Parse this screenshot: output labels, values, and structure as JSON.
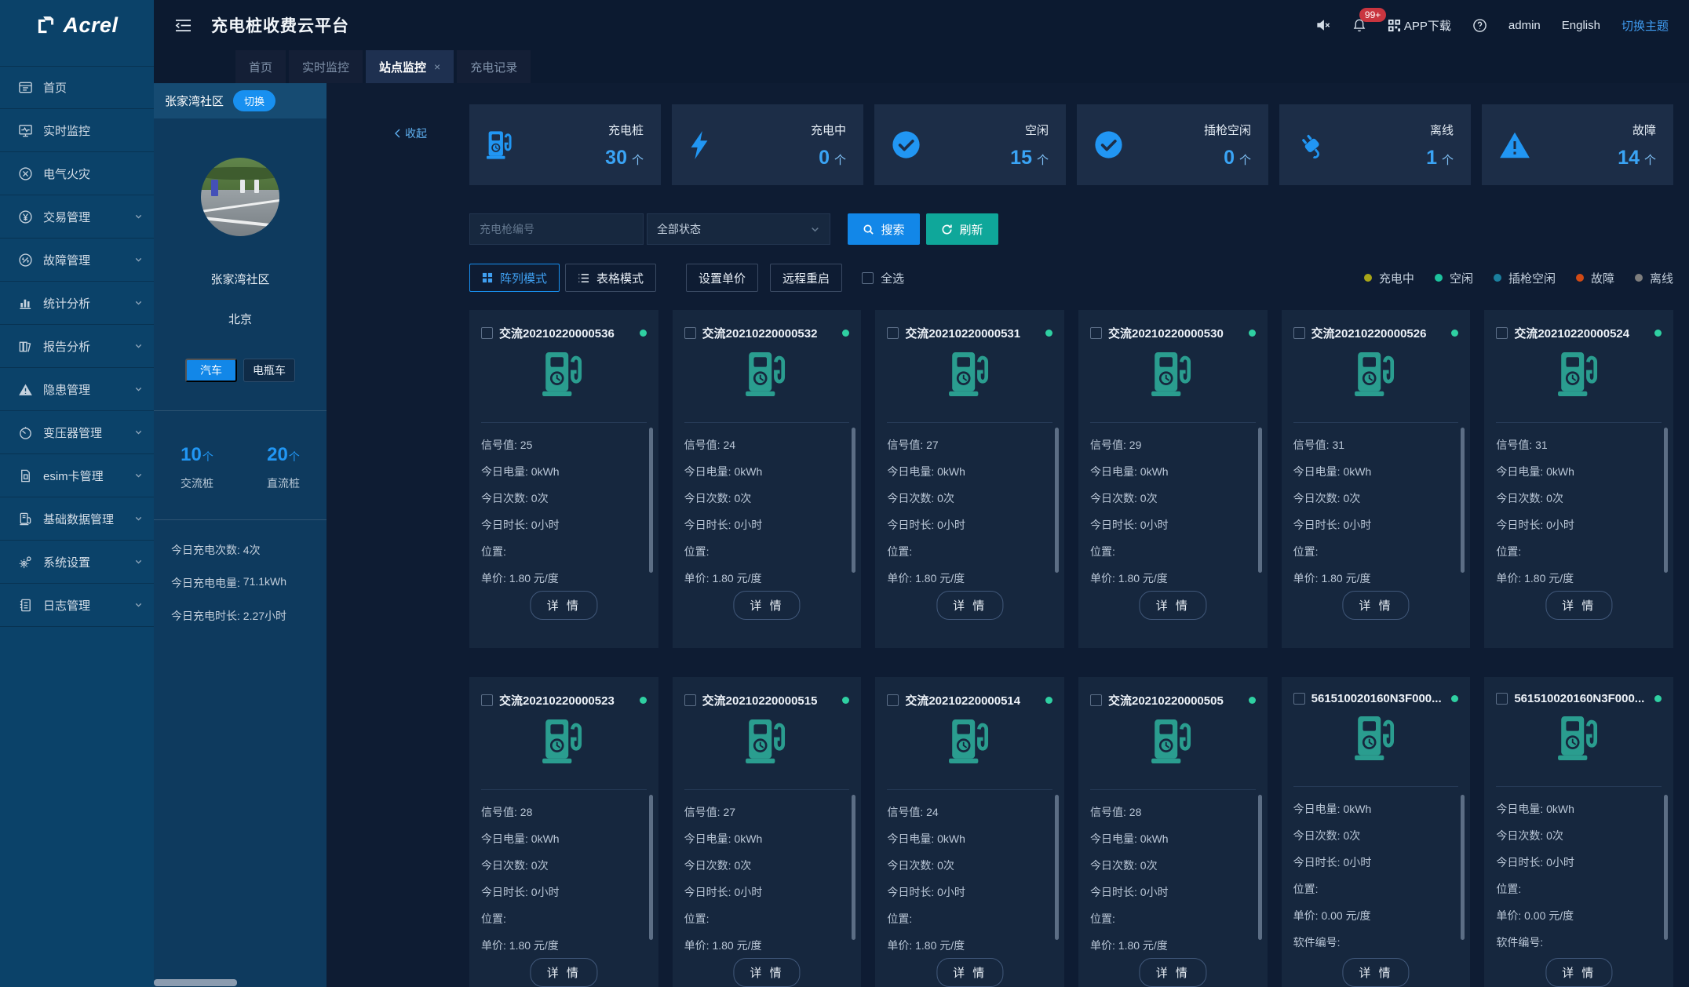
{
  "brand": {
    "name": "Acrel"
  },
  "header": {
    "title": "充电桩收费云平台",
    "notification_count": "99+",
    "app_download_label": "APP下载",
    "username": "admin",
    "language_label": "English",
    "theme_switch_label": "切换主题"
  },
  "tabs": [
    {
      "label": "首页",
      "active": false,
      "closable": false
    },
    {
      "label": "实时监控",
      "active": false,
      "closable": false
    },
    {
      "label": "站点监控",
      "active": true,
      "closable": true
    },
    {
      "label": "充电记录",
      "active": false,
      "closable": false
    }
  ],
  "sidebar": {
    "items": [
      {
        "label": "首页",
        "icon": "home-icon",
        "expandable": false
      },
      {
        "label": "实时监控",
        "icon": "monitor-icon",
        "expandable": false
      },
      {
        "label": "电气火灾",
        "icon": "electrical-fire-icon",
        "expandable": false
      },
      {
        "label": "交易管理",
        "icon": "transaction-icon",
        "expandable": true
      },
      {
        "label": "故障管理",
        "icon": "fault-icon",
        "expandable": true
      },
      {
        "label": "统计分析",
        "icon": "statistics-icon",
        "expandable": true
      },
      {
        "label": "报告分析",
        "icon": "report-icon",
        "expandable": true
      },
      {
        "label": "隐患管理",
        "icon": "hazard-icon",
        "expandable": true
      },
      {
        "label": "变压器管理",
        "icon": "transformer-icon",
        "expandable": true
      },
      {
        "label": "esim卡管理",
        "icon": "sim-card-icon",
        "expandable": true
      },
      {
        "label": "基础数据管理",
        "icon": "base-data-icon",
        "expandable": true
      },
      {
        "label": "系统设置",
        "icon": "settings-icon",
        "expandable": true
      },
      {
        "label": "日志管理",
        "icon": "log-icon",
        "expandable": true
      }
    ]
  },
  "station_panel": {
    "collapse_label": "收起",
    "name": "张家湾社区",
    "switch_label": "切换",
    "photo_caption": "张家湾社区",
    "city": "北京",
    "vehicle_tabs": [
      {
        "label": "汽车",
        "active": true
      },
      {
        "label": "电瓶车",
        "active": false
      }
    ],
    "pile_stats": [
      {
        "value": "10",
        "unit": "个",
        "label": "交流桩"
      },
      {
        "value": "20",
        "unit": "个",
        "label": "直流桩"
      }
    ],
    "today_stats": [
      {
        "label": "今日充电次数",
        "value": "4次"
      },
      {
        "label": "今日充电电量",
        "value": "71.1kWh"
      },
      {
        "label": "今日充电时长",
        "value": "2.27小时"
      }
    ]
  },
  "status_cards": [
    {
      "label": "充电桩",
      "value": "30",
      "unit": "个",
      "icon": "charging-pile-icon"
    },
    {
      "label": "充电中",
      "value": "0",
      "unit": "个",
      "icon": "bolt-icon"
    },
    {
      "label": "空闲",
      "value": "15",
      "unit": "个",
      "icon": "check-circle-icon"
    },
    {
      "label": "插枪空闲",
      "value": "0",
      "unit": "个",
      "icon": "check-circle-icon"
    },
    {
      "label": "离线",
      "value": "1",
      "unit": "个",
      "icon": "plug-icon"
    },
    {
      "label": "故障",
      "value": "14",
      "unit": "个",
      "icon": "warning-icon"
    }
  ],
  "toolbar": {
    "search_placeholder": "充电枪编号",
    "status_filter_value": "全部状态",
    "search_label": "搜索",
    "refresh_label": "刷新",
    "array_mode_label": "阵列模式",
    "table_mode_label": "表格模式",
    "set_price_label": "设置单价",
    "remote_restart_label": "远程重启",
    "select_all_label": "全选"
  },
  "legend": [
    {
      "label": "充电中",
      "color": "#a8a518"
    },
    {
      "label": "空闲",
      "color": "#1dc29e"
    },
    {
      "label": "插枪空闲",
      "color": "#1b7f9e"
    },
    {
      "label": "故障",
      "color": "#d14a15"
    },
    {
      "label": "离线",
      "color": "#7d7d7d"
    }
  ],
  "cards_common": {
    "detail_label": "详 情",
    "status_dot_color": "#2fd0a2"
  },
  "pile_cards": [
    {
      "title": "交流20210220000536",
      "fields": [
        {
          "label": "信号值",
          "value": "25"
        },
        {
          "label": "今日电量",
          "value": "0kWh"
        },
        {
          "label": "今日次数",
          "value": "0次"
        },
        {
          "label": "今日时长",
          "value": "0小时"
        },
        {
          "label": "位置",
          "value": ""
        },
        {
          "label": "单价",
          "value": "1.80 元/度"
        }
      ]
    },
    {
      "title": "交流20210220000532",
      "fields": [
        {
          "label": "信号值",
          "value": "24"
        },
        {
          "label": "今日电量",
          "value": "0kWh"
        },
        {
          "label": "今日次数",
          "value": "0次"
        },
        {
          "label": "今日时长",
          "value": "0小时"
        },
        {
          "label": "位置",
          "value": ""
        },
        {
          "label": "单价",
          "value": "1.80 元/度"
        }
      ]
    },
    {
      "title": "交流20210220000531",
      "fields": [
        {
          "label": "信号值",
          "value": "27"
        },
        {
          "label": "今日电量",
          "value": "0kWh"
        },
        {
          "label": "今日次数",
          "value": "0次"
        },
        {
          "label": "今日时长",
          "value": "0小时"
        },
        {
          "label": "位置",
          "value": ""
        },
        {
          "label": "单价",
          "value": "1.80 元/度"
        }
      ]
    },
    {
      "title": "交流20210220000530",
      "fields": [
        {
          "label": "信号值",
          "value": "29"
        },
        {
          "label": "今日电量",
          "value": "0kWh"
        },
        {
          "label": "今日次数",
          "value": "0次"
        },
        {
          "label": "今日时长",
          "value": "0小时"
        },
        {
          "label": "位置",
          "value": ""
        },
        {
          "label": "单价",
          "value": "1.80 元/度"
        }
      ]
    },
    {
      "title": "交流20210220000526",
      "fields": [
        {
          "label": "信号值",
          "value": "31"
        },
        {
          "label": "今日电量",
          "value": "0kWh"
        },
        {
          "label": "今日次数",
          "value": "0次"
        },
        {
          "label": "今日时长",
          "value": "0小时"
        },
        {
          "label": "位置",
          "value": ""
        },
        {
          "label": "单价",
          "value": "1.80 元/度"
        }
      ]
    },
    {
      "title": "交流20210220000524",
      "fields": [
        {
          "label": "信号值",
          "value": "31"
        },
        {
          "label": "今日电量",
          "value": "0kWh"
        },
        {
          "label": "今日次数",
          "value": "0次"
        },
        {
          "label": "今日时长",
          "value": "0小时"
        },
        {
          "label": "位置",
          "value": ""
        },
        {
          "label": "单价",
          "value": "1.80 元/度"
        }
      ]
    },
    {
      "title": "交流20210220000523",
      "fields": [
        {
          "label": "信号值",
          "value": "28"
        },
        {
          "label": "今日电量",
          "value": "0kWh"
        },
        {
          "label": "今日次数",
          "value": "0次"
        },
        {
          "label": "今日时长",
          "value": "0小时"
        },
        {
          "label": "位置",
          "value": ""
        },
        {
          "label": "单价",
          "value": "1.80 元/度"
        }
      ]
    },
    {
      "title": "交流20210220000515",
      "fields": [
        {
          "label": "信号值",
          "value": "27"
        },
        {
          "label": "今日电量",
          "value": "0kWh"
        },
        {
          "label": "今日次数",
          "value": "0次"
        },
        {
          "label": "今日时长",
          "value": "0小时"
        },
        {
          "label": "位置",
          "value": ""
        },
        {
          "label": "单价",
          "value": "1.80 元/度"
        }
      ]
    },
    {
      "title": "交流20210220000514",
      "fields": [
        {
          "label": "信号值",
          "value": "24"
        },
        {
          "label": "今日电量",
          "value": "0kWh"
        },
        {
          "label": "今日次数",
          "value": "0次"
        },
        {
          "label": "今日时长",
          "value": "0小时"
        },
        {
          "label": "位置",
          "value": ""
        },
        {
          "label": "单价",
          "value": "1.80 元/度"
        }
      ]
    },
    {
      "title": "交流20210220000505",
      "fields": [
        {
          "label": "信号值",
          "value": "28"
        },
        {
          "label": "今日电量",
          "value": "0kWh"
        },
        {
          "label": "今日次数",
          "value": "0次"
        },
        {
          "label": "今日时长",
          "value": "0小时"
        },
        {
          "label": "位置",
          "value": ""
        },
        {
          "label": "单价",
          "value": "1.80 元/度"
        }
      ]
    },
    {
      "title": "561510020160N3F000...",
      "fields": [
        {
          "label": "今日电量",
          "value": "0kWh"
        },
        {
          "label": "今日次数",
          "value": "0次"
        },
        {
          "label": "今日时长",
          "value": "0小时"
        },
        {
          "label": "位置",
          "value": ""
        },
        {
          "label": "单价",
          "value": "0.00 元/度"
        },
        {
          "label": "软件编号",
          "value": ""
        }
      ]
    },
    {
      "title": "561510020160N3F000...",
      "fields": [
        {
          "label": "今日电量",
          "value": "0kWh"
        },
        {
          "label": "今日次数",
          "value": "0次"
        },
        {
          "label": "今日时长",
          "value": "0小时"
        },
        {
          "label": "位置",
          "value": ""
        },
        {
          "label": "单价",
          "value": "0.00 元/度"
        },
        {
          "label": "软件编号",
          "value": ""
        }
      ]
    }
  ]
}
